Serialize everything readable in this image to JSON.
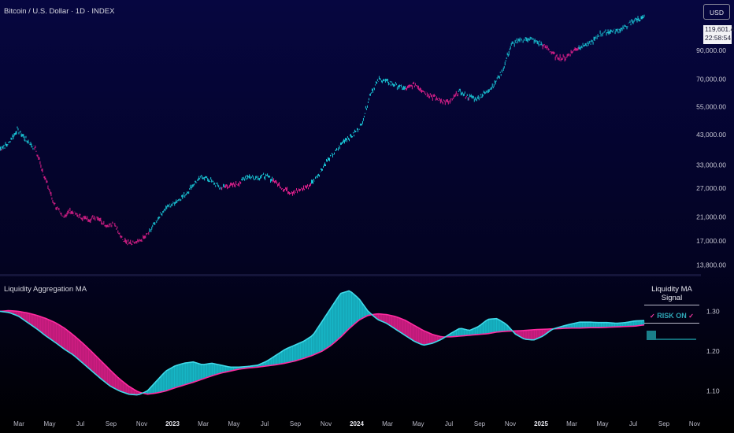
{
  "header": {
    "symbol_title": "Bitcoin / U.S. Dollar · 1D · INDEX",
    "currency_button": "USD",
    "last_price": "119,601.43",
    "countdown": "22:58:54"
  },
  "indicator": {
    "title": "Liquidity Aggregation MA",
    "signal_title": "Liquidity MA Signal",
    "signal_state": "RISK ON",
    "signal_mark": "✓"
  },
  "colors": {
    "bull": "#19c6d6",
    "bear": "#e0208c",
    "ma_line": "#ff2aa0",
    "liq_line": "#3fd9e8",
    "bg_top": "#060640",
    "bg_bottom": "#000000"
  },
  "chart_data": [
    {
      "type": "line",
      "scale": "log",
      "ylim": [
        13000,
        135000
      ],
      "y_ticks": [
        13800,
        17000,
        21000,
        27000,
        33000,
        43000,
        55000,
        70000,
        90000
      ],
      "y_tick_labels": [
        "13,800.00",
        "17,000.00",
        "21,000.00",
        "27,000.00",
        "33,000.00",
        "43,000.00",
        "55,000.00",
        "70,000.00",
        "90,000.00"
      ],
      "x_ticks": [
        "Mar",
        "May",
        "Jul",
        "Sep",
        "Nov",
        "2023",
        "Mar",
        "May",
        "Jul",
        "Sep",
        "Nov",
        "2024",
        "Mar",
        "May",
        "Jul",
        "Sep",
        "Nov",
        "2025",
        "Mar",
        "May",
        "Jul",
        "Sep",
        "Nov"
      ],
      "series": [
        {
          "values": [
            38000,
            40000,
            45000,
            41000,
            38000,
            30000,
            24000,
            21000,
            22000,
            21000,
            20500,
            21000,
            19500,
            19700,
            17000,
            16500,
            17000,
            18500,
            21000,
            23000,
            24000,
            25500,
            28000,
            30000,
            28500,
            27000,
            27500,
            28000,
            30000,
            29500,
            30000,
            29000,
            27000,
            26000,
            26500,
            27500,
            30000,
            34000,
            37000,
            41000,
            43000,
            47000,
            62000,
            70000,
            68000,
            66000,
            64000,
            67000,
            63000,
            60000,
            58000,
            57000,
            63000,
            60000,
            59000,
            62000,
            67000,
            76000,
            95000,
            98000,
            100000,
            96000,
            92000,
            85000,
            84000,
            90000,
            94000,
            96000,
            104000,
            106000,
            107000,
            111000,
            118000,
            119601
          ]
        }
      ]
    },
    {
      "type": "area",
      "ylim": [
        1.05,
        1.38
      ],
      "y_ticks": [
        1.1,
        1.2,
        1.3
      ],
      "y_tick_labels": [
        "1.10",
        "1.20",
        "1.30"
      ],
      "series": [
        {
          "values": [
            1.3,
            1.297,
            1.288,
            1.272,
            1.256,
            1.238,
            1.222,
            1.205,
            1.19,
            1.17,
            1.15,
            1.13,
            1.112,
            1.1,
            1.092,
            1.09,
            1.1,
            1.125,
            1.15,
            1.163,
            1.17,
            1.173,
            1.166,
            1.17,
            1.165,
            1.16,
            1.16,
            1.162,
            1.165,
            1.175,
            1.19,
            1.205,
            1.215,
            1.225,
            1.24,
            1.275,
            1.31,
            1.345,
            1.352,
            1.332,
            1.3,
            1.28,
            1.27,
            1.255,
            1.24,
            1.225,
            1.215,
            1.22,
            1.23,
            1.245,
            1.258,
            1.252,
            1.262,
            1.28,
            1.282,
            1.268,
            1.243,
            1.23,
            1.228,
            1.238,
            1.255,
            1.262,
            1.268,
            1.273,
            1.273,
            1.272,
            1.272,
            1.27,
            1.272,
            1.276,
            1.277
          ]
        },
        {
          "values": [
            1.3,
            1.302,
            1.3,
            1.296,
            1.29,
            1.282,
            1.272,
            1.258,
            1.24,
            1.22,
            1.198,
            1.175,
            1.152,
            1.13,
            1.112,
            1.098,
            1.092,
            1.095,
            1.1,
            1.108,
            1.115,
            1.122,
            1.13,
            1.138,
            1.145,
            1.15,
            1.155,
            1.158,
            1.16,
            1.163,
            1.166,
            1.17,
            1.175,
            1.182,
            1.19,
            1.2,
            1.215,
            1.235,
            1.258,
            1.278,
            1.29,
            1.294,
            1.292,
            1.287,
            1.278,
            1.265,
            1.252,
            1.242,
            1.236,
            1.236,
            1.238,
            1.24,
            1.242,
            1.244,
            1.248,
            1.25,
            1.251,
            1.252,
            1.254,
            1.255,
            1.256,
            1.257,
            1.258,
            1.258,
            1.259,
            1.259,
            1.26,
            1.261,
            1.262,
            1.263,
            1.266
          ]
        }
      ]
    }
  ]
}
